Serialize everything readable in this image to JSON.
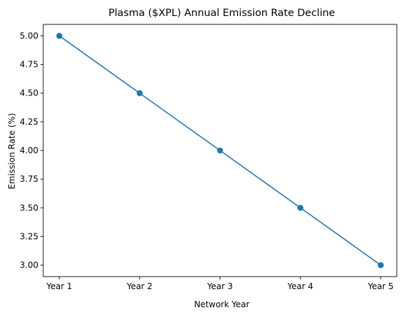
{
  "chart_data": {
    "type": "line",
    "title": "Plasma ($XPL) Annual Emission Rate Decline",
    "xlabel": "Network Year",
    "ylabel": "Emission Rate (%)",
    "categories": [
      "Year 1",
      "Year 2",
      "Year 3",
      "Year 4",
      "Year 5"
    ],
    "series": [
      {
        "values": [
          5.0,
          4.5,
          4.0,
          3.5,
          3.0
        ],
        "color": "#1f77b4",
        "marker": "circle"
      }
    ],
    "ylim": [
      2.9,
      5.1
    ],
    "yticks": [
      "3.00",
      "3.25",
      "3.50",
      "3.75",
      "4.00",
      "4.25",
      "4.50",
      "4.75",
      "5.00"
    ],
    "grid": false,
    "legend": "none"
  }
}
